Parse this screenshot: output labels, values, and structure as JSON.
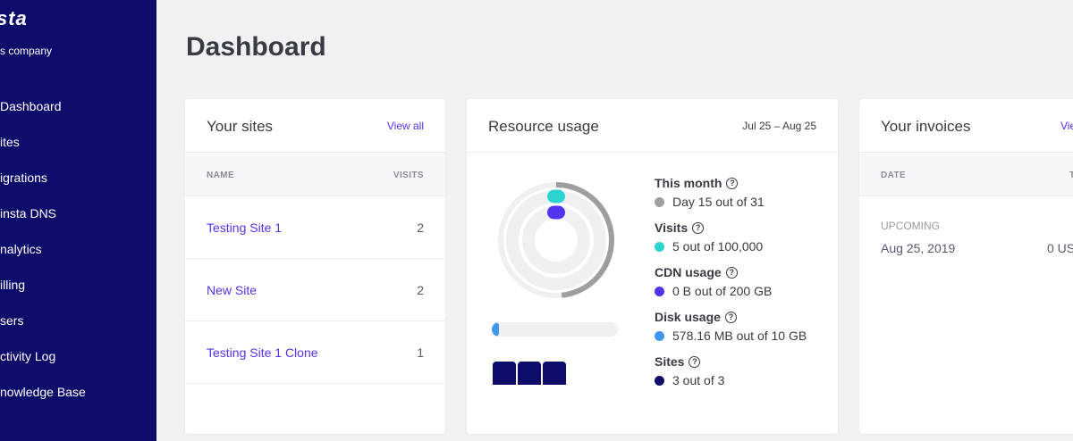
{
  "sidebar": {
    "logo": "sta",
    "company": "s company",
    "items": [
      {
        "label": "Dashboard"
      },
      {
        "label": "ites"
      },
      {
        "label": "igrations"
      },
      {
        "label": "insta DNS"
      },
      {
        "label": "nalytics"
      },
      {
        "label": "illing"
      },
      {
        "label": "sers"
      },
      {
        "label": "ctivity Log"
      },
      {
        "label": "nowledge Base"
      }
    ]
  },
  "page": {
    "title": "Dashboard"
  },
  "sites_card": {
    "title": "Your sites",
    "view_all": "View all",
    "col_name": "NAME",
    "col_visits": "VISITS",
    "rows": [
      {
        "name": "Testing Site 1",
        "visits": "2"
      },
      {
        "name": "New Site",
        "visits": "2"
      },
      {
        "name": "Testing Site 1 Clone",
        "visits": "1"
      }
    ]
  },
  "resource_card": {
    "title": "Resource usage",
    "range": "Jul 25 – Aug 25",
    "stats": [
      {
        "label": "This month",
        "value": "Day 15 out of 31",
        "color": "#9e9e9e",
        "fraction": 0.484
      },
      {
        "label": "Visits",
        "value": "5 out of 100,000",
        "color": "#2dd4cf"
      },
      {
        "label": "CDN usage",
        "value": "0 B out of 200 GB",
        "color": "#5333ed"
      },
      {
        "label": "Disk usage",
        "value": "578.16 MB out of 10 GB",
        "color": "#3f96ef",
        "fraction": 0.056
      },
      {
        "label": "Sites",
        "value": "3 out of 3",
        "color": "#0d0c6b",
        "count": 3
      }
    ]
  },
  "invoices_card": {
    "title": "Your invoices",
    "view_all": "Vie",
    "col_date": "DATE",
    "col_total": "T",
    "upcoming_label": "UPCOMING",
    "date": "Aug 25, 2019",
    "amount": "0 US"
  }
}
